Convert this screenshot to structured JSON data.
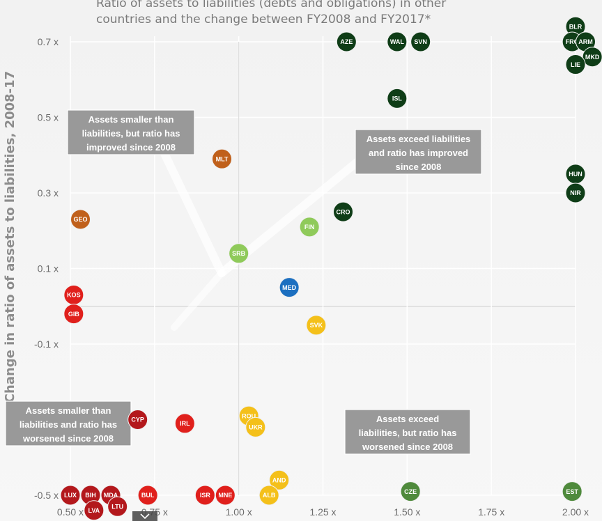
{
  "chart_data": {
    "type": "scatter",
    "title_lines": [
      "Ratio of assets to liabilities (debts and obligations) in other",
      "countries and the change between FY2008 and FY2017*"
    ],
    "ylabel": "Change in ratio of assets to liabilities, 2008-17",
    "xlabel": "",
    "xlim": [
      0.5,
      2.0
    ],
    "ylim": [
      -0.5,
      0.7
    ],
    "x_ticks": [
      {
        "value": 0.5,
        "label": "0.50 x"
      },
      {
        "value": 0.75,
        "label": "0.75 x"
      },
      {
        "value": 1.0,
        "label": "1.00 x"
      },
      {
        "value": 1.25,
        "label": "1.25 x"
      },
      {
        "value": 1.5,
        "label": "1.50 x"
      },
      {
        "value": 1.75,
        "label": "1.75 x"
      },
      {
        "value": 2.0,
        "label": "2.00 x"
      }
    ],
    "y_ticks": [
      {
        "value": 0.7,
        "label": "0.7 x"
      },
      {
        "value": 0.5,
        "label": "0.5 x"
      },
      {
        "value": 0.3,
        "label": "0.3 x"
      },
      {
        "value": 0.1,
        "label": "0.1 x"
      },
      {
        "value": -0.1,
        "label": "-0.1 x"
      },
      {
        "value": -0.5,
        "label": "-0.5 x"
      }
    ],
    "grid": true,
    "colors": {
      "dark_green": "#0f3d17",
      "light_green": "#8fca5a",
      "mid_green": "#4f8a3c",
      "orange": "#c0601b",
      "red": "#e0201c",
      "dark_red": "#b3181c",
      "yellow": "#f4c01a",
      "blue": "#1c6fc0",
      "box": "#999999"
    },
    "points": [
      {
        "code": "BLR",
        "x": 2.0,
        "y": 0.74,
        "color": "dark_green"
      },
      {
        "code": "FRO",
        "x": 1.99,
        "y": 0.7,
        "color": "dark_green"
      },
      {
        "code": "ARM",
        "x": 2.03,
        "y": 0.7,
        "color": "dark_green"
      },
      {
        "code": "MKD",
        "x": 2.05,
        "y": 0.66,
        "color": "dark_green"
      },
      {
        "code": "LIE",
        "x": 2.0,
        "y": 0.64,
        "color": "dark_green"
      },
      {
        "code": "AZE",
        "x": 1.32,
        "y": 0.7,
        "color": "dark_green"
      },
      {
        "code": "WAL",
        "x": 1.47,
        "y": 0.7,
        "color": "dark_green"
      },
      {
        "code": "SVN",
        "x": 1.54,
        "y": 0.7,
        "color": "dark_green"
      },
      {
        "code": "ISL",
        "x": 1.47,
        "y": 0.55,
        "color": "dark_green"
      },
      {
        "code": "HUN",
        "x": 2.0,
        "y": 0.35,
        "color": "dark_green"
      },
      {
        "code": "NIR",
        "x": 2.0,
        "y": 0.3,
        "color": "dark_green"
      },
      {
        "code": "CRO",
        "x": 1.31,
        "y": 0.25,
        "color": "dark_green"
      },
      {
        "code": "FIN",
        "x": 1.21,
        "y": 0.21,
        "color": "light_green"
      },
      {
        "code": "SRB",
        "x": 1.0,
        "y": 0.14,
        "color": "light_green"
      },
      {
        "code": "MLT",
        "x": 0.95,
        "y": 0.39,
        "color": "orange"
      },
      {
        "code": "GEO",
        "x": 0.53,
        "y": 0.23,
        "color": "orange"
      },
      {
        "code": "MED",
        "x": 1.15,
        "y": 0.05,
        "color": "blue"
      },
      {
        "code": "SVK",
        "x": 1.23,
        "y": -0.05,
        "color": "yellow"
      },
      {
        "code": "KOS",
        "x": 0.51,
        "y": 0.03,
        "color": "red"
      },
      {
        "code": "GIB",
        "x": 0.51,
        "y": -0.02,
        "color": "red"
      },
      {
        "code": "CYP",
        "x": 0.7,
        "y": -0.3,
        "color": "dark_red"
      },
      {
        "code": "IRL",
        "x": 0.84,
        "y": -0.31,
        "color": "red"
      },
      {
        "code": "ROU",
        "x": 1.03,
        "y": -0.29,
        "color": "yellow"
      },
      {
        "code": "UKR",
        "x": 1.05,
        "y": -0.32,
        "color": "yellow"
      },
      {
        "code": "AND",
        "x": 1.12,
        "y": -0.46,
        "color": "yellow"
      },
      {
        "code": "ALB",
        "x": 1.09,
        "y": -0.5,
        "color": "yellow"
      },
      {
        "code": "CZE",
        "x": 1.51,
        "y": -0.49,
        "color": "mid_green"
      },
      {
        "code": "EST",
        "x": 1.99,
        "y": -0.49,
        "color": "mid_green"
      },
      {
        "code": "LUX",
        "x": 0.5,
        "y": -0.5,
        "color": "dark_red"
      },
      {
        "code": "BIH",
        "x": 0.56,
        "y": -0.5,
        "color": "dark_red"
      },
      {
        "code": "MDA",
        "x": 0.62,
        "y": -0.5,
        "color": "dark_red"
      },
      {
        "code": "LVA",
        "x": 0.57,
        "y": -0.54,
        "color": "dark_red"
      },
      {
        "code": "LTU",
        "x": 0.64,
        "y": -0.53,
        "color": "dark_red"
      },
      {
        "code": "BUL",
        "x": 0.73,
        "y": -0.5,
        "color": "red"
      },
      {
        "code": "ISR",
        "x": 0.9,
        "y": -0.5,
        "color": "red"
      },
      {
        "code": "MNE",
        "x": 0.96,
        "y": -0.5,
        "color": "red"
      }
    ],
    "quadrant_labels": [
      {
        "id": "top-left",
        "lines": [
          "Assets smaller than",
          "liabilities, but ratio has",
          "improved since 2008"
        ]
      },
      {
        "id": "top-right",
        "lines": [
          "Assets exceed liabilities",
          "and ratio has improved",
          "since 2008"
        ]
      },
      {
        "id": "bottom-left",
        "lines": [
          "Assets smaller than",
          "liabilities and ratio has",
          "worsened since 2008"
        ]
      },
      {
        "id": "bottom-right",
        "lines": [
          "Assets exceed",
          "liabilities, but ratio has",
          "worsened since 2008"
        ]
      }
    ]
  }
}
